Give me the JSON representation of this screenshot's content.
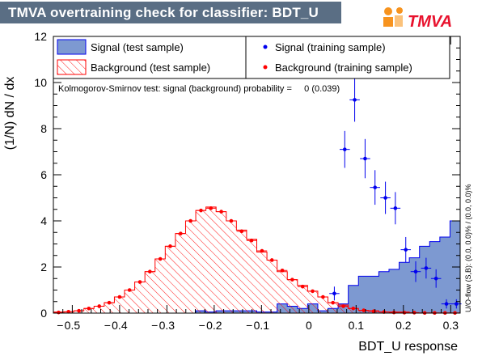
{
  "header": {
    "title": "TMVA overtraining check for classifier: BDT_U"
  },
  "logo": {
    "text": "TMVA"
  },
  "colors": {
    "signal_fill": "#7d99d1",
    "signal_line": "#0000ee",
    "background_line": "#ff0000",
    "header_bg": "#5a6e84",
    "logo_orange": "#f7931e"
  },
  "chart_data": {
    "type": "histogram",
    "xlabel": "BDT_U response",
    "ylabel": "(1/N) dN / dx",
    "xlim": [
      -0.54,
      0.32
    ],
    "ylim": [
      0,
      12
    ],
    "xticks": [
      -0.5,
      -0.4,
      -0.3,
      -0.2,
      -0.1,
      0,
      0.1,
      0.2,
      0.3
    ],
    "xtick_labels": [
      "0.5",
      "0.4",
      "0.3",
      "0.2",
      "0.1",
      "0",
      "0.1",
      "0.2",
      "0.3"
    ],
    "yticks": [
      0,
      2,
      4,
      6,
      8,
      10,
      12
    ],
    "ytick_labels": [
      "0",
      "2",
      "4",
      "6",
      "8",
      "10",
      "12"
    ],
    "legend": [
      {
        "label": "Signal (test sample)"
      },
      {
        "label": "Signal (training sample)"
      },
      {
        "label": "Background (test sample)"
      },
      {
        "label": "Background (training sample)"
      }
    ],
    "annotation": "Kolmogorov-Smirnov test: signal (background) probability =     0 (0.039)",
    "side_label": "U/O-flow (S,B): (0.0, 0.0)% / (0.0, 0.0)%",
    "bins": {
      "start": -0.54,
      "width": 0.0215
    },
    "series": [
      {
        "name": "Signal (test sample)",
        "values": [
          0,
          0,
          0,
          0,
          0,
          0,
          0,
          0,
          0,
          0,
          0,
          0,
          0,
          0,
          0.1,
          0.05,
          0.1,
          0.1,
          0.1,
          0.1,
          0.05,
          0.05,
          0.4,
          0.3,
          0.2,
          0.4,
          0.1,
          0.2,
          0.4,
          1.2,
          1.6,
          1.6,
          1.8,
          1.9,
          2.2,
          2.4,
          2.9,
          3.1,
          3.3,
          4.0,
          3.7,
          4.9,
          3.9,
          2.2,
          1.3,
          1.1,
          0.6,
          0.45,
          0.4,
          0.3
        ]
      },
      {
        "name": "Background (test sample)",
        "values": [
          0.05,
          0.05,
          0.1,
          0.2,
          0.3,
          0.45,
          0.7,
          1.0,
          1.35,
          1.8,
          2.35,
          2.9,
          3.45,
          4.0,
          4.45,
          4.6,
          4.4,
          4.0,
          3.6,
          3.2,
          2.65,
          2.3,
          1.8,
          1.45,
          1.2,
          0.95,
          0.7,
          0.45,
          0.35,
          0.2,
          0.12,
          0.1,
          0.05,
          0.05,
          0.05,
          0,
          0,
          0,
          0,
          0,
          0,
          0,
          0,
          0,
          0,
          0,
          0,
          0,
          0,
          0
        ]
      },
      {
        "name": "Signal (training sample)",
        "points": [
          {
            "x": 0.054,
            "y": 0.85,
            "err": 0.3
          },
          {
            "x": 0.076,
            "y": 7.1,
            "err": 0.8
          },
          {
            "x": 0.097,
            "y": 9.25,
            "err": 0.95
          },
          {
            "x": 0.119,
            "y": 6.7,
            "err": 0.85
          },
          {
            "x": 0.14,
            "y": 5.45,
            "err": 0.75
          },
          {
            "x": 0.162,
            "y": 5.0,
            "err": 0.7
          },
          {
            "x": 0.183,
            "y": 4.55,
            "err": 0.7
          },
          {
            "x": 0.205,
            "y": 2.75,
            "err": 0.55
          },
          {
            "x": 0.226,
            "y": 1.8,
            "err": 0.45
          },
          {
            "x": 0.248,
            "y": 1.95,
            "err": 0.45
          },
          {
            "x": 0.269,
            "y": 1.5,
            "err": 0.4
          },
          {
            "x": 0.291,
            "y": 0.4,
            "err": 0.2
          },
          {
            "x": 0.312,
            "y": 0.4,
            "err": 0.2
          }
        ]
      },
      {
        "name": "Background (training sample)",
        "points": [
          {
            "x": -0.529,
            "y": 0.03
          },
          {
            "x": -0.508,
            "y": 0.06
          },
          {
            "x": -0.486,
            "y": 0.1
          },
          {
            "x": -0.465,
            "y": 0.2
          },
          {
            "x": -0.443,
            "y": 0.3
          },
          {
            "x": -0.422,
            "y": 0.45
          },
          {
            "x": -0.4,
            "y": 0.7
          },
          {
            "x": -0.379,
            "y": 1.0
          },
          {
            "x": -0.357,
            "y": 1.35
          },
          {
            "x": -0.336,
            "y": 1.8
          },
          {
            "x": -0.314,
            "y": 2.35
          },
          {
            "x": -0.293,
            "y": 2.9
          },
          {
            "x": -0.271,
            "y": 3.45
          },
          {
            "x": -0.25,
            "y": 4.0
          },
          {
            "x": -0.228,
            "y": 4.45
          },
          {
            "x": -0.207,
            "y": 4.55
          },
          {
            "x": -0.185,
            "y": 4.4
          },
          {
            "x": -0.164,
            "y": 4.0
          },
          {
            "x": -0.142,
            "y": 3.55
          },
          {
            "x": -0.121,
            "y": 3.15
          },
          {
            "x": -0.099,
            "y": 2.7
          },
          {
            "x": -0.078,
            "y": 2.3
          },
          {
            "x": -0.056,
            "y": 1.85
          },
          {
            "x": -0.035,
            "y": 1.45
          },
          {
            "x": -0.013,
            "y": 1.15
          },
          {
            "x": 0.008,
            "y": 0.95
          },
          {
            "x": 0.03,
            "y": 0.7
          },
          {
            "x": 0.051,
            "y": 0.45
          },
          {
            "x": 0.073,
            "y": 0.3
          },
          {
            "x": 0.094,
            "y": 0.2
          },
          {
            "x": 0.116,
            "y": 0.12
          },
          {
            "x": 0.137,
            "y": 0.08
          },
          {
            "x": 0.159,
            "y": 0.05
          },
          {
            "x": 0.18,
            "y": 0.03
          },
          {
            "x": 0.202,
            "y": 0.02
          },
          {
            "x": 0.223,
            "y": 0.02
          },
          {
            "x": 0.245,
            "y": 0.01
          },
          {
            "x": 0.266,
            "y": 0.01
          },
          {
            "x": 0.288,
            "y": 0.01
          },
          {
            "x": 0.309,
            "y": 0.01
          }
        ]
      }
    ]
  }
}
